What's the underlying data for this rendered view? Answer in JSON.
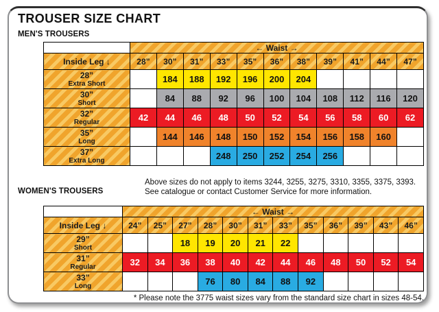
{
  "title": "TROUSER SIZE CHART",
  "colors": {
    "gold_base": "#F0A42C",
    "gold_stripe": "#F8C963",
    "yellow": "#FFE600",
    "gray": "#AAABAF",
    "red": "#EC1B24",
    "orange": "#F0832B",
    "blue": "#29ABE2",
    "red_text": "#FFFFFF",
    "default_text": "#111111"
  },
  "mens": {
    "heading": "MEN'S TROUSERS",
    "waist_label": "← Waist →",
    "corner_label": "Inside Leg ↓",
    "waist_sizes": [
      "28”",
      "30”",
      "31”",
      "33”",
      "35”",
      "36”",
      "38”",
      "39”",
      "41”",
      "44”",
      "47”"
    ],
    "rows": [
      {
        "size": "28”",
        "fit": "Extra Short",
        "style": "yellow",
        "values": [
          "",
          184,
          188,
          192,
          196,
          200,
          204,
          "",
          "",
          "",
          ""
        ]
      },
      {
        "size": "30”",
        "fit": "Short",
        "style": "gray",
        "values": [
          "",
          84,
          88,
          92,
          96,
          100,
          104,
          108,
          112,
          116,
          120
        ]
      },
      {
        "size": "32”",
        "fit": "Regular",
        "style": "red",
        "values": [
          42,
          44,
          46,
          48,
          50,
          52,
          54,
          56,
          58,
          60,
          62
        ]
      },
      {
        "size": "35”",
        "fit": "Long",
        "style": "orange",
        "values": [
          "",
          144,
          146,
          148,
          150,
          152,
          154,
          156,
          158,
          160,
          ""
        ]
      },
      {
        "size": "37”",
        "fit": "Extra Long",
        "style": "blue",
        "values": [
          "",
          "",
          "",
          248,
          250,
          252,
          254,
          256,
          "",
          "",
          ""
        ]
      }
    ],
    "note_line1": "Above sizes do not apply to items 3244, 3255, 3275, 3310, 3355, 3375, 3393.",
    "note_line2": "See catalogue or contact Customer Service for more information."
  },
  "womens": {
    "heading": "WOMEN'S TROUSERS",
    "waist_label": "← Waist →",
    "corner_label": "Inside Leg ↓",
    "waist_sizes": [
      "24”",
      "25”",
      "27”",
      "28”",
      "30”",
      "31”",
      "33”",
      "35”",
      "36”",
      "39”",
      "43”",
      "46”"
    ],
    "rows": [
      {
        "size": "29”",
        "fit": "Short",
        "style": "yellow",
        "values": [
          "",
          "",
          18,
          19,
          20,
          21,
          22,
          "",
          "",
          "",
          "",
          ""
        ]
      },
      {
        "size": "31”",
        "fit": "Regular",
        "style": "red",
        "values": [
          32,
          34,
          36,
          38,
          40,
          42,
          44,
          46,
          48,
          50,
          52,
          54
        ]
      },
      {
        "size": "33”",
        "fit": "Long",
        "style": "blue",
        "values": [
          "",
          "",
          "",
          76,
          80,
          84,
          88,
          92,
          "",
          "",
          "",
          ""
        ]
      }
    ]
  },
  "footer_note": "* Please note the 3775 waist sizes vary from the standard size chart in sizes 48-54."
}
